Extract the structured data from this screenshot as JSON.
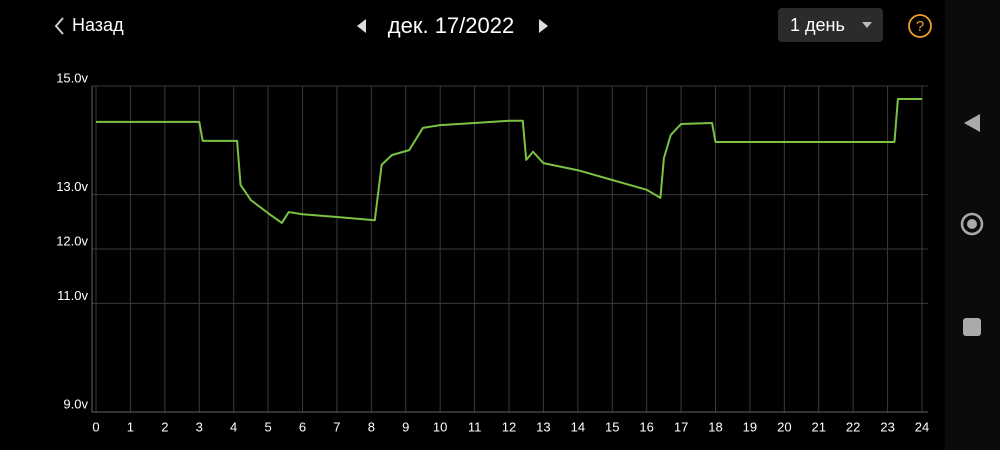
{
  "header": {
    "back": "Назад",
    "date": "дек. 17/2022",
    "range": "1 день",
    "help": "?"
  },
  "chart_data": {
    "type": "line",
    "x": [
      0,
      3.0,
      3.1,
      4.1,
      4.2,
      4.5,
      5,
      5.4,
      5.6,
      6,
      7,
      8.1,
      8.3,
      8.6,
      9.1,
      9.5,
      10,
      11,
      12,
      12.4,
      12.5,
      12.7,
      13,
      14,
      15,
      16,
      16.4,
      16.5,
      16.7,
      17,
      17.9,
      18,
      19,
      20,
      21,
      22,
      23.2,
      23.3,
      24
    ],
    "series": [
      {
        "color": "#7cc242",
        "values": [
          14.34,
          14.34,
          13.99,
          13.99,
          13.18,
          12.9,
          12.66,
          12.48,
          12.68,
          12.64,
          12.59,
          12.53,
          13.55,
          13.73,
          13.82,
          14.23,
          14.28,
          14.32,
          14.36,
          14.36,
          13.64,
          13.79,
          13.58,
          13.45,
          13.27,
          13.09,
          12.94,
          13.67,
          14.1,
          14.3,
          14.32,
          13.97,
          13.97,
          13.97,
          13.97,
          13.97,
          13.97,
          14.76,
          14.76
        ]
      }
    ],
    "xlim": [
      0,
      24
    ],
    "xticks": [
      0,
      1,
      2,
      3,
      4,
      5,
      6,
      7,
      8,
      9,
      10,
      11,
      12,
      13,
      14,
      15,
      16,
      17,
      18,
      19,
      20,
      21,
      22,
      23,
      24
    ],
    "ylim": [
      9,
      15
    ],
    "yticks": [
      {
        "value": 15,
        "label": "15.0v"
      },
      {
        "value": 13,
        "label": "13.0v"
      },
      {
        "value": 12,
        "label": "12.0v"
      },
      {
        "value": 11,
        "label": "11.0v"
      },
      {
        "value": 9,
        "label": "9.0v"
      }
    ],
    "grid": true
  }
}
